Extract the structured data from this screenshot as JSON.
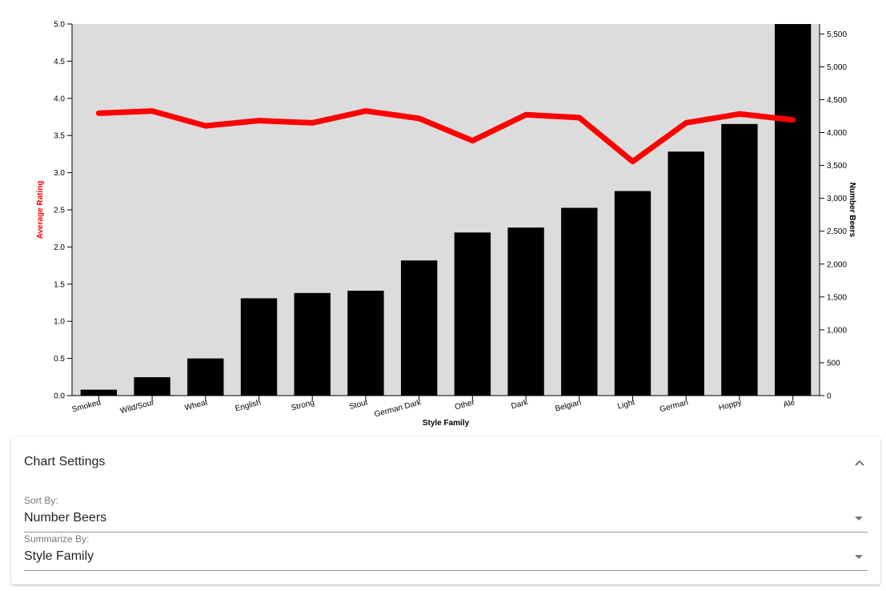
{
  "chart_data": {
    "type": "bar",
    "xlabel": "Style Family",
    "categories": [
      "Smoked",
      "Wild/Sour",
      "Wheat",
      "English",
      "Strong",
      "Stout",
      "German Dark",
      "Other",
      "Dark",
      "Belgian",
      "Light",
      "German",
      "Hoppy",
      "Ale"
    ],
    "series": [
      {
        "name": "Number Beers",
        "type": "bar",
        "axis": "right",
        "color": "#000000",
        "values": [
          90,
          280,
          565,
          1480,
          1560,
          1595,
          2055,
          2480,
          2555,
          2855,
          3110,
          3710,
          4130,
          5650
        ]
      },
      {
        "name": "Average Rating",
        "type": "line",
        "axis": "left",
        "color": "#ff0000",
        "values": [
          3.8,
          3.83,
          3.63,
          3.7,
          3.67,
          3.83,
          3.73,
          3.43,
          3.78,
          3.74,
          3.15,
          3.67,
          3.79,
          3.71
        ]
      }
    ],
    "y_left": {
      "label": "Average Rating",
      "ylim": [
        0,
        5
      ],
      "ticks": [
        "0.0",
        "0.5",
        "1.0",
        "1.5",
        "2.0",
        "2.5",
        "3.0",
        "3.5",
        "4.0",
        "4.5",
        "5.0"
      ]
    },
    "y_right": {
      "label": "Number Beers",
      "ylim": [
        0,
        5650
      ],
      "ticks": [
        "0",
        "500",
        "1,000",
        "1,500",
        "2,000",
        "2,500",
        "3,000",
        "3,500",
        "4,000",
        "4,500",
        "5,000",
        "5,500"
      ]
    },
    "plot_background": "#dcdcdc",
    "grid": false,
    "legend": "none"
  },
  "settings": {
    "title": "Chart Settings",
    "expand_icon": "chevron-up-icon",
    "sort_by": {
      "label": "Sort By:",
      "value": "Number Beers"
    },
    "summarize_by": {
      "label": "Summarize By:",
      "value": "Style Family"
    }
  }
}
